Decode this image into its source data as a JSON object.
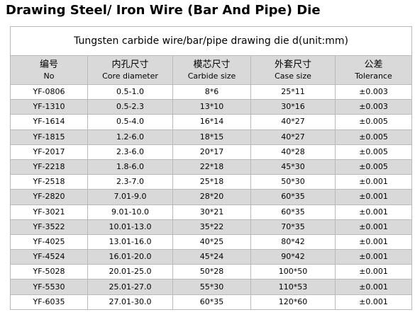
{
  "title": "Drawing Steel/ Iron Wire (Bar And Pipe) Die",
  "table": {
    "caption": "Tungsten carbide wire/bar/pipe drawing die d(unit:mm)",
    "headers": [
      {
        "zh": "编号",
        "en": "No"
      },
      {
        "zh": "内孔尺寸",
        "en": "Core diameter"
      },
      {
        "zh": "模芯尺寸",
        "en": "Carbide size"
      },
      {
        "zh": "外套尺寸",
        "en": "Case size"
      },
      {
        "zh": "公差",
        "en": "Tolerance"
      }
    ],
    "rows": [
      [
        "YF-0806",
        "0.5-1.0",
        "8*6",
        "25*11",
        "±0.003"
      ],
      [
        "YF-1310",
        "0.5-2.3",
        "13*10",
        "30*16",
        "±0.003"
      ],
      [
        "YF-1614",
        "0.5-4.0",
        "16*14",
        "40*27",
        "±0.005"
      ],
      [
        "YF-1815",
        "1.2-6.0",
        "18*15",
        "40*27",
        "±0.005"
      ],
      [
        "YF-2017",
        "2.3-6.0",
        "20*17",
        "40*28",
        "±0.005"
      ],
      [
        "YF-2218",
        "1.8-6.0",
        "22*18",
        "45*30",
        "±0.005"
      ],
      [
        "YF-2518",
        "2.3-7.0",
        "25*18",
        "50*30",
        "±0.001"
      ],
      [
        "YF-2820",
        "7.01-9.0",
        "28*20",
        "60*35",
        "±0.001"
      ],
      [
        "YF-3021",
        "9.01-10.0",
        "30*21",
        "60*35",
        "±0.001"
      ],
      [
        "YF-3522",
        "10.01-13.0",
        "35*22",
        "70*35",
        "±0.001"
      ],
      [
        "YF-4025",
        "13.01-16.0",
        "40*25",
        "80*42",
        "±0.001"
      ],
      [
        "YF-4524",
        "16.01-20.0",
        "45*24",
        "90*42",
        "±0.001"
      ],
      [
        "YF-5028",
        "20.01-25.0",
        "50*28",
        "100*50",
        "±0.001"
      ],
      [
        "YF-5530",
        "25.01-27.0",
        "55*30",
        "110*53",
        "±0.001"
      ],
      [
        "YF-6035",
        "27.01-30.0",
        "60*35",
        "120*60",
        "±0.001"
      ]
    ]
  }
}
